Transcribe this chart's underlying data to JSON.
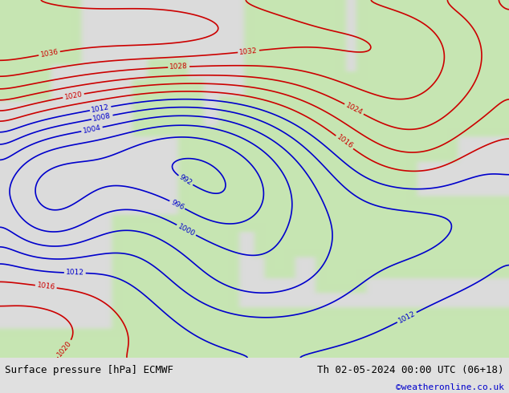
{
  "title_left": "Surface pressure [hPa] ECMWF",
  "title_right": "Th 02-05-2024 00:00 UTC (06+18)",
  "credit": "©weatheronline.co.uk",
  "sea_color": "#d8d8d8",
  "land_color": "#c8e6b8",
  "bottom_bar_color": "#e0e0e0",
  "title_fontsize": 9,
  "credit_fontsize": 8,
  "credit_color": "#0000cc",
  "isobar_low_color": "#0000cc",
  "isobar_high_color": "#cc0000",
  "isobar_1013_color": "#000000",
  "label_fontsize": 6.5,
  "isobar_lw": 1.2,
  "isobar_1013_lw": 1.8
}
